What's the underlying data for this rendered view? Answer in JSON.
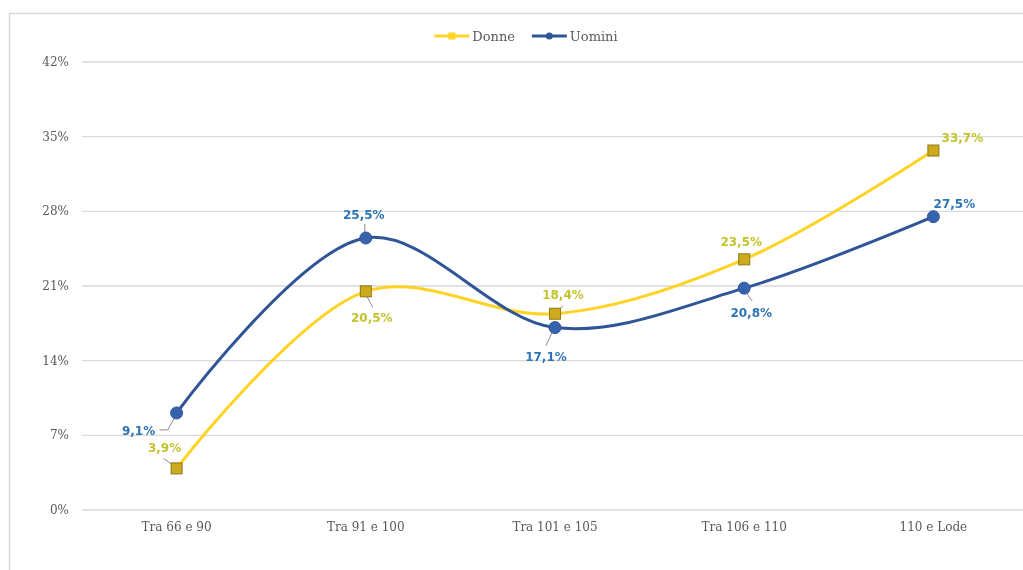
{
  "chart_data": {
    "type": "line",
    "categories": [
      "Tra 66 e 90",
      "Tra 91 e 100",
      "Tra 101 e 105",
      "Tra 106 e 110",
      "110 e Lode"
    ],
    "series": [
      {
        "name": "Donne",
        "color": "#ffd324",
        "marker": "square",
        "values": [
          3.9,
          20.5,
          18.4,
          23.5,
          33.7
        ],
        "value_labels": [
          "3,9%",
          "20,5%",
          "18,4%",
          "23,5%",
          "33,7%"
        ]
      },
      {
        "name": "Uomini",
        "color": "#2f5597",
        "marker": "circle",
        "values": [
          9.1,
          25.5,
          17.1,
          20.8,
          27.5
        ],
        "value_labels": [
          "9,1%",
          "25,5%",
          "17,1%",
          "20,8%",
          "27,5%"
        ]
      }
    ],
    "ylim": [
      0,
      42
    ],
    "yticks": [
      {
        "value": 0,
        "label": "0%"
      },
      {
        "value": 7,
        "label": "7%"
      },
      {
        "value": 14,
        "label": "14%"
      },
      {
        "value": 21,
        "label": "21%"
      },
      {
        "value": 28,
        "label": "28%"
      },
      {
        "value": 35,
        "label": "35%"
      },
      {
        "value": 42,
        "label": "42%"
      }
    ],
    "grid": "y",
    "legend": "top",
    "line_style": "solid"
  }
}
